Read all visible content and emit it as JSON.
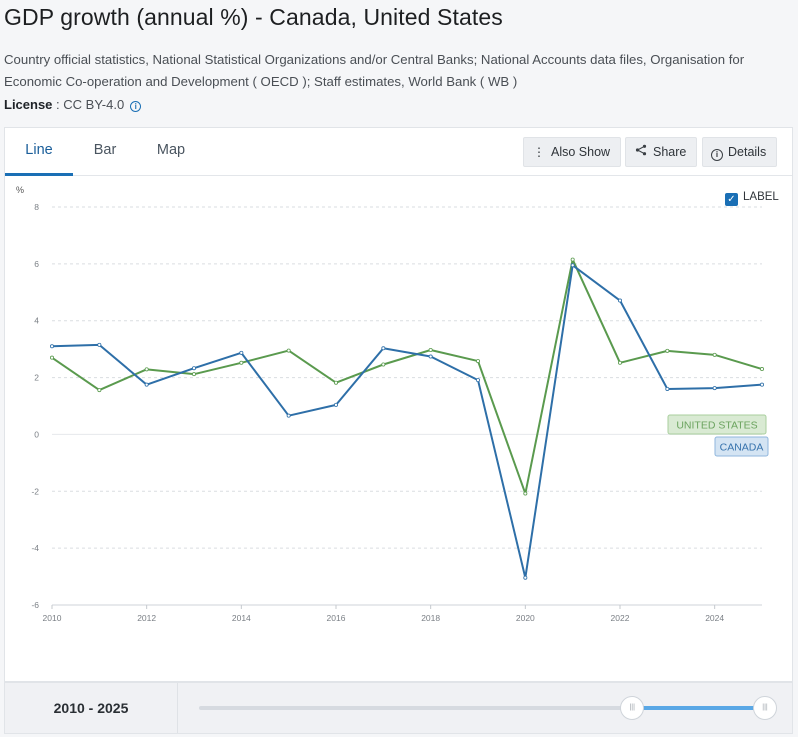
{
  "page": {
    "title": "GDP growth (annual %) - Canada, United States",
    "source": "Country official statistics, National Statistical Organizations and/or Central Banks; National Accounts data files, Organisation for Economic Co-operation and Development ( OECD ); Staff estimates, World Bank ( WB )",
    "license_label": "License",
    "license_value": " : CC BY-4.0"
  },
  "tabs": [
    {
      "label": "Line",
      "active": true
    },
    {
      "label": "Bar",
      "active": false
    },
    {
      "label": "Map",
      "active": false
    }
  ],
  "toolbar": {
    "also_show": "Also Show",
    "share": "Share",
    "details": "Details"
  },
  "label_toggle": {
    "text": "LABEL",
    "checked": true
  },
  "range": {
    "label": "2010 - 2025",
    "start_fraction": 0.76,
    "end_fraction": 1.0
  },
  "colors": {
    "canada": "#2e6fa8",
    "united_states": "#5a9a4e"
  },
  "chart_data": {
    "type": "line",
    "ylabel": "%",
    "xlabel": "",
    "ylim": [
      -6,
      8
    ],
    "xlim": [
      2010,
      2025
    ],
    "yticks": [
      -6,
      -4,
      -2,
      0,
      2,
      4,
      6,
      8
    ],
    "xticks": [
      2010,
      2012,
      2014,
      2016,
      2018,
      2020,
      2022,
      2024
    ],
    "grid": true,
    "x": [
      2010,
      2011,
      2012,
      2013,
      2014,
      2015,
      2016,
      2017,
      2018,
      2019,
      2020,
      2021,
      2022,
      2023,
      2024,
      2025
    ],
    "series": [
      {
        "name": "CANADA",
        "values": [
          3.1,
          3.15,
          1.75,
          2.33,
          2.87,
          0.66,
          1.04,
          3.03,
          2.74,
          1.91,
          -5.04,
          5.95,
          4.71,
          1.6,
          1.63,
          1.75
        ]
      },
      {
        "name": "UNITED STATES",
        "values": [
          2.7,
          1.56,
          2.29,
          2.12,
          2.52,
          2.95,
          1.82,
          2.46,
          2.97,
          2.58,
          -2.08,
          6.15,
          2.52,
          2.94,
          2.8,
          2.3
        ]
      }
    ]
  }
}
